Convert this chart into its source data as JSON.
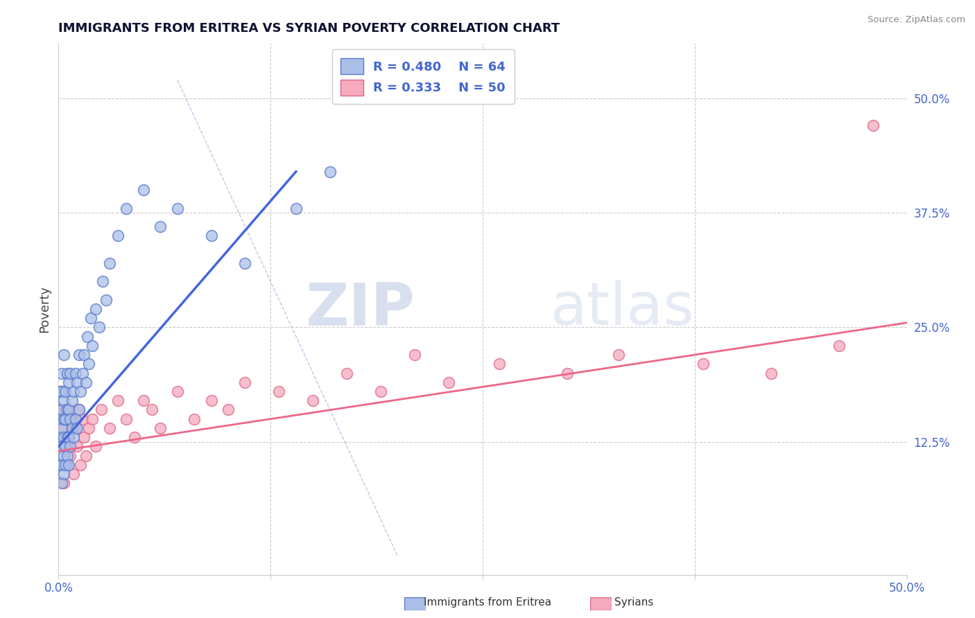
{
  "title": "IMMIGRANTS FROM ERITREA VS SYRIAN POVERTY CORRELATION CHART",
  "source_text": "Source: ZipAtlas.com",
  "ylabel": "Poverty",
  "xlim": [
    0.0,
    0.5
  ],
  "ylim": [
    -0.02,
    0.56
  ],
  "legend_r1": "R = 0.480",
  "legend_n1": "N = 64",
  "legend_r2": "R = 0.333",
  "legend_n2": "N = 50",
  "watermark_zip": "ZIP",
  "watermark_atlas": "atlas",
  "blue_face": "#AABFE8",
  "blue_edge": "#5577CC",
  "pink_face": "#F5AABD",
  "pink_edge": "#DD6688",
  "blue_line": "#4466DD",
  "pink_line": "#EE6688",
  "grid_color": "#CCCCCC",
  "tick_color": "#4466CC",
  "eritrea_x": [
    0.001,
    0.001,
    0.001,
    0.001,
    0.002,
    0.002,
    0.002,
    0.002,
    0.002,
    0.002,
    0.002,
    0.003,
    0.003,
    0.003,
    0.003,
    0.003,
    0.003,
    0.004,
    0.004,
    0.004,
    0.004,
    0.005,
    0.005,
    0.005,
    0.005,
    0.006,
    0.006,
    0.006,
    0.006,
    0.007,
    0.007,
    0.007,
    0.008,
    0.008,
    0.009,
    0.009,
    0.01,
    0.01,
    0.011,
    0.011,
    0.012,
    0.012,
    0.013,
    0.014,
    0.015,
    0.016,
    0.017,
    0.018,
    0.019,
    0.02,
    0.022,
    0.024,
    0.026,
    0.028,
    0.03,
    0.035,
    0.04,
    0.05,
    0.06,
    0.07,
    0.09,
    0.11,
    0.14,
    0.16
  ],
  "eritrea_y": [
    0.1,
    0.13,
    0.15,
    0.18,
    0.08,
    0.1,
    0.12,
    0.14,
    0.16,
    0.18,
    0.2,
    0.09,
    0.11,
    0.13,
    0.15,
    0.17,
    0.22,
    0.1,
    0.12,
    0.15,
    0.18,
    0.11,
    0.13,
    0.16,
    0.2,
    0.1,
    0.13,
    0.16,
    0.19,
    0.12,
    0.15,
    0.2,
    0.14,
    0.17,
    0.13,
    0.18,
    0.15,
    0.2,
    0.14,
    0.19,
    0.16,
    0.22,
    0.18,
    0.2,
    0.22,
    0.19,
    0.24,
    0.21,
    0.26,
    0.23,
    0.27,
    0.25,
    0.3,
    0.28,
    0.32,
    0.35,
    0.38,
    0.4,
    0.36,
    0.38,
    0.35,
    0.32,
    0.38,
    0.42
  ],
  "syria_x": [
    0.001,
    0.001,
    0.002,
    0.002,
    0.003,
    0.003,
    0.004,
    0.004,
    0.005,
    0.005,
    0.006,
    0.007,
    0.008,
    0.009,
    0.01,
    0.011,
    0.012,
    0.013,
    0.014,
    0.015,
    0.016,
    0.018,
    0.02,
    0.022,
    0.025,
    0.03,
    0.035,
    0.04,
    0.045,
    0.05,
    0.055,
    0.06,
    0.07,
    0.08,
    0.09,
    0.1,
    0.11,
    0.13,
    0.15,
    0.17,
    0.19,
    0.21,
    0.23,
    0.26,
    0.3,
    0.33,
    0.38,
    0.42,
    0.46,
    0.48
  ],
  "syria_y": [
    0.12,
    0.16,
    0.1,
    0.18,
    0.08,
    0.14,
    0.12,
    0.16,
    0.1,
    0.15,
    0.13,
    0.11,
    0.15,
    0.09,
    0.14,
    0.12,
    0.16,
    0.1,
    0.15,
    0.13,
    0.11,
    0.14,
    0.15,
    0.12,
    0.16,
    0.14,
    0.17,
    0.15,
    0.13,
    0.17,
    0.16,
    0.14,
    0.18,
    0.15,
    0.17,
    0.16,
    0.19,
    0.18,
    0.17,
    0.2,
    0.18,
    0.22,
    0.19,
    0.21,
    0.2,
    0.22,
    0.21,
    0.2,
    0.23,
    0.47
  ],
  "blue_line_x0": 0.0,
  "blue_line_y0": 0.12,
  "blue_line_x1": 0.14,
  "blue_line_y1": 0.42,
  "pink_line_x0": 0.0,
  "pink_line_y0": 0.115,
  "pink_line_x1": 0.5,
  "pink_line_y1": 0.255,
  "dash_line_x0": 0.07,
  "dash_line_y0": 0.52,
  "dash_line_x1": 0.2,
  "dash_line_y1": 0.0
}
